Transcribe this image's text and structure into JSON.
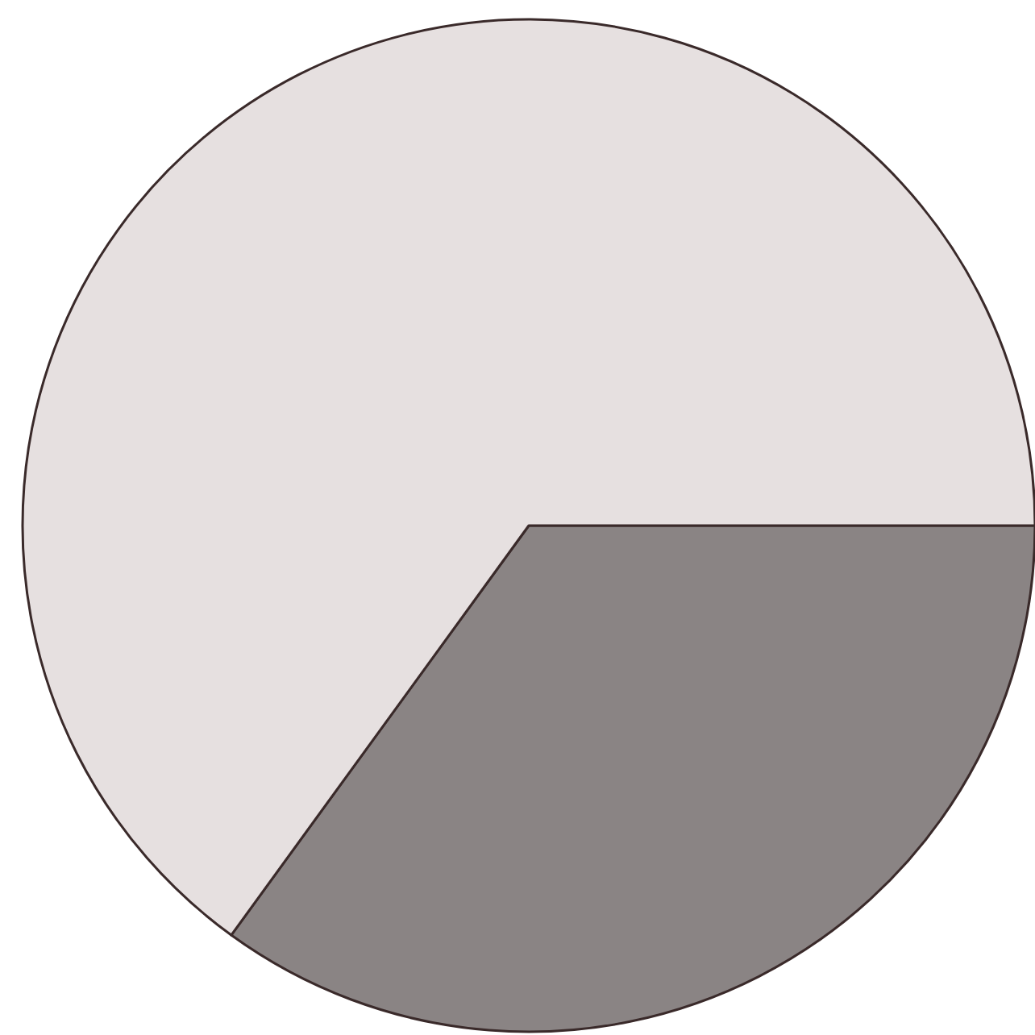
{
  "chart_data": {
    "type": "pie",
    "categories": [
      null,
      null
    ],
    "values": [
      35,
      65
    ],
    "colors": [
      "#8a8484",
      "#e6e0e0"
    ]
  }
}
